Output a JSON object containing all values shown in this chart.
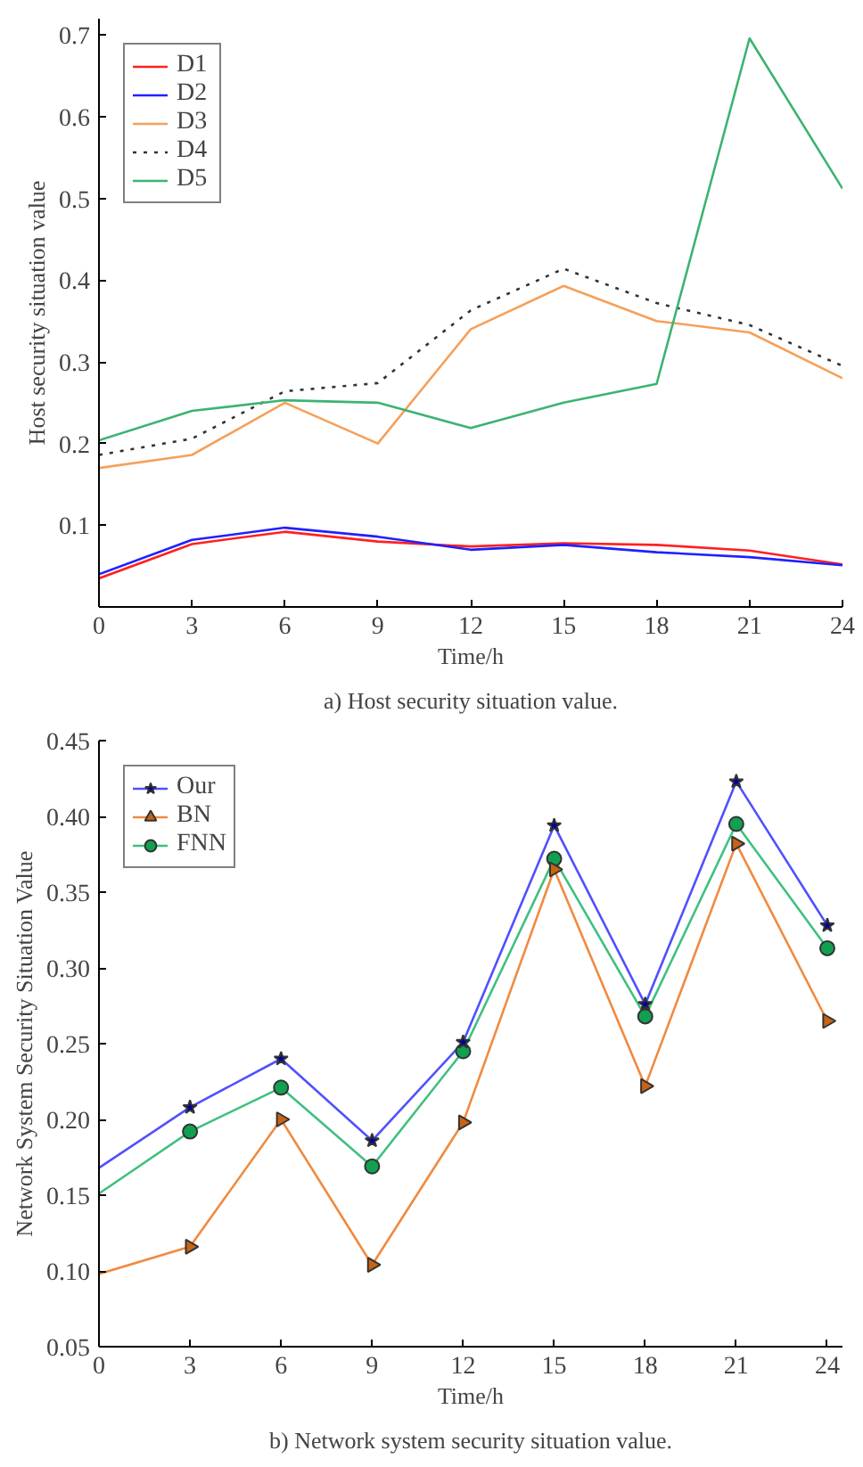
{
  "chart_data": [
    {
      "type": "line",
      "title": "a) Host security situation value.",
      "xlabel": "Time/h",
      "ylabel": "Host security situation value",
      "x": [
        0,
        3,
        6,
        9,
        12,
        15,
        18,
        21,
        24
      ],
      "xlim": [
        0,
        24
      ],
      "xticks": [
        0,
        3,
        6,
        9,
        12,
        15,
        18,
        21,
        24
      ],
      "ylim": [
        0,
        0.72
      ],
      "yticks": [
        0.1,
        0.2,
        0.3,
        0.4,
        0.5,
        0.6,
        0.7
      ],
      "grid": false,
      "legend": "top left",
      "series": [
        {
          "name": "D1",
          "color": "#ff2020",
          "values": [
            0.035,
            0.077,
            0.092,
            0.08,
            0.074,
            0.078,
            0.076,
            0.069,
            0.052
          ]
        },
        {
          "name": "D2",
          "color": "#2020ff",
          "values": [
            0.04,
            0.082,
            0.097,
            0.086,
            0.07,
            0.076,
            0.067,
            0.061,
            0.051
          ]
        },
        {
          "name": "D3",
          "color": "#f5a05a",
          "values": [
            0.17,
            0.186,
            0.25,
            0.2,
            0.34,
            0.393,
            0.35,
            0.336,
            0.28
          ]
        },
        {
          "name": "D4",
          "color": "#333333",
          "line_style": "dotted",
          "values": [
            0.186,
            0.206,
            0.264,
            0.274,
            0.363,
            0.414,
            0.372,
            0.345,
            0.295
          ]
        },
        {
          "name": "D5",
          "color": "#3cb371",
          "values": [
            0.204,
            0.24,
            0.253,
            0.25,
            0.219,
            0.25,
            0.273,
            0.696,
            0.512
          ]
        }
      ]
    },
    {
      "type": "line",
      "title": "b) Network system security situation value.",
      "xlabel": "Time/h",
      "ylabel": "Network System Security Situation Value",
      "x": [
        0,
        3,
        6,
        9,
        12,
        15,
        18,
        21,
        24
      ],
      "xlim": [
        0,
        24.5
      ],
      "xticks": [
        0,
        3,
        6,
        9,
        12,
        15,
        18,
        21,
        24
      ],
      "ylim": [
        0.05,
        0.45
      ],
      "yticks": [
        {
          "value": 0.05,
          "label": "0.05"
        },
        {
          "value": 0.1,
          "label": "0.10"
        },
        {
          "value": 0.15,
          "label": "0.15"
        },
        {
          "value": 0.2,
          "label": "0.20"
        },
        {
          "value": 0.25,
          "label": "0.25"
        },
        {
          "value": 0.3,
          "label": "0.30"
        },
        {
          "value": 0.35,
          "label": "0.35"
        },
        {
          "value": 0.4,
          "label": "0.40"
        },
        {
          "value": 0.45,
          "label": "0.45"
        }
      ],
      "grid": false,
      "legend": "top left",
      "series": [
        {
          "name": "Our",
          "color": "#5050ff",
          "marker": "star",
          "values": [
            0.168,
            0.208,
            0.24,
            0.186,
            0.251,
            0.394,
            0.276,
            0.423,
            0.328
          ]
        },
        {
          "name": "BN",
          "color": "#f08a40",
          "marker": "triangle",
          "values": [
            0.098,
            0.116,
            0.2,
            0.104,
            0.198,
            0.365,
            0.222,
            0.382,
            0.265
          ]
        },
        {
          "name": "FNN",
          "color": "#40c080",
          "marker": "circle",
          "values": [
            0.151,
            0.192,
            0.221,
            0.169,
            0.245,
            0.372,
            0.268,
            0.395,
            0.313
          ]
        }
      ]
    }
  ]
}
